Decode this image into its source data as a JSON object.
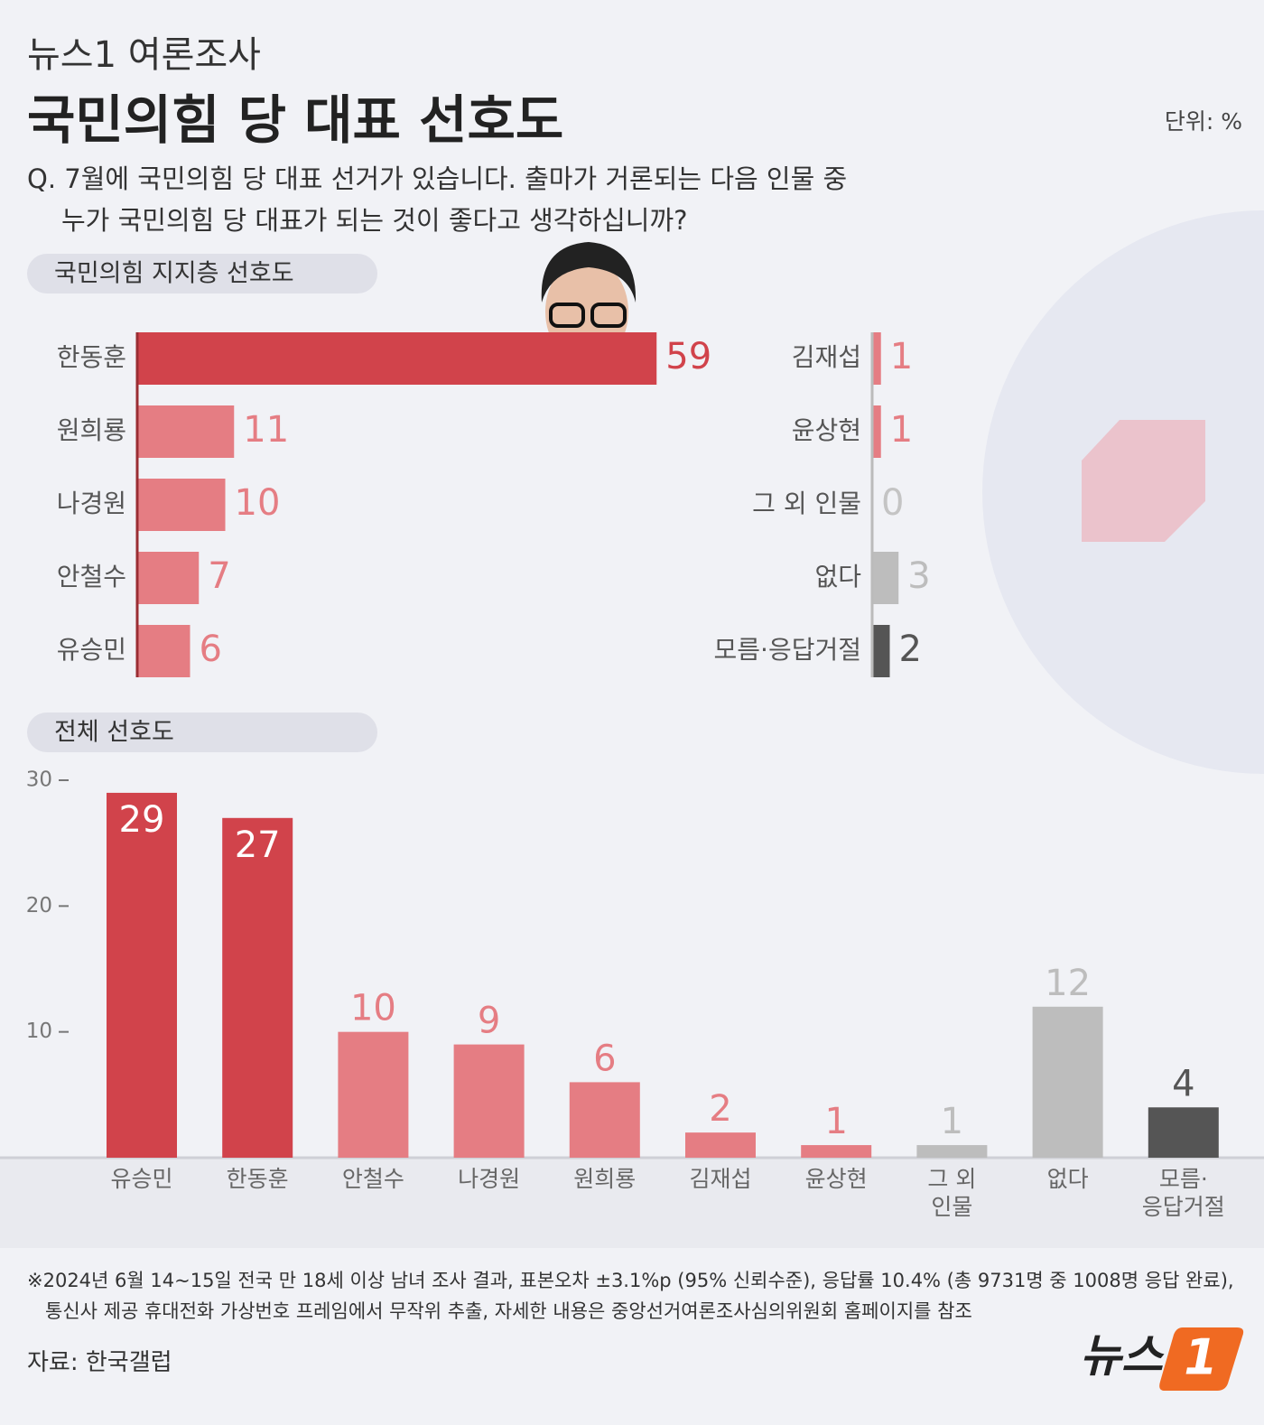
{
  "header": {
    "kicker": "뉴스1 여론조사",
    "title": "국민의힘 당 대표 선호도",
    "unit": "단위: %",
    "question": [
      "Q. 7월에 국민의힘 당 대표 선거가 있습니다. 출마가 거론되는 다음 인물 중",
      "누가 국민의힘 당 대표가 되는 것이 좋다고 생각하십니까?"
    ]
  },
  "chart_data": [
    {
      "type": "hbar",
      "title": "국민의힘 지지층 선호도",
      "categories": [
        "한동훈",
        "원희룡",
        "나경원",
        "안철수",
        "유승민",
        "김재섭",
        "윤상현",
        "그 외 인물",
        "없다",
        "모름·응답거절"
      ],
      "values": [
        59,
        11,
        10,
        7,
        6,
        1,
        1,
        0,
        3,
        2
      ],
      "colors": [
        "#d1434b",
        "#e57d83",
        "#e57d83",
        "#e57d83",
        "#e57d83",
        "#e57d83",
        "#e57d83",
        "#c4c4c4",
        "#bdbdbd",
        "#555555"
      ]
    },
    {
      "type": "bar",
      "title": "전체 선호도",
      "categories": [
        "유승민",
        "한동훈",
        "안철수",
        "나경원",
        "원희룡",
        "김재섭",
        "윤상현",
        "그 외\n인물",
        "없다",
        "모름·\n응답거절"
      ],
      "values": [
        29,
        27,
        10,
        9,
        6,
        2,
        1,
        1,
        12,
        4
      ],
      "colors": [
        "#d1434b",
        "#d1434b",
        "#e57d83",
        "#e57d83",
        "#e57d83",
        "#e57d83",
        "#e57d83",
        "#bdbdbd",
        "#bdbdbd",
        "#555555"
      ],
      "ylim": [
        0,
        30
      ],
      "yticks": [
        10,
        20,
        30
      ]
    }
  ],
  "footer": {
    "note": [
      "※2024년 6월 14~15일 전국 만 18세 이상 남녀 조사 결과, 표본오차 ±3.1%p (95% 신뢰수준), 응답률 10.4% (총 9731명 중 1008명 응답 완료),",
      "통신사 제공 휴대전화 가상번호 프레임에서 무작위 추출, 자세한 내용은 중앙선거여론조사심의위원회 홈페이지를 참조"
    ],
    "source": "자료: 한국갤럽",
    "logo_text": "뉴스",
    "logo_mark": "1"
  }
}
